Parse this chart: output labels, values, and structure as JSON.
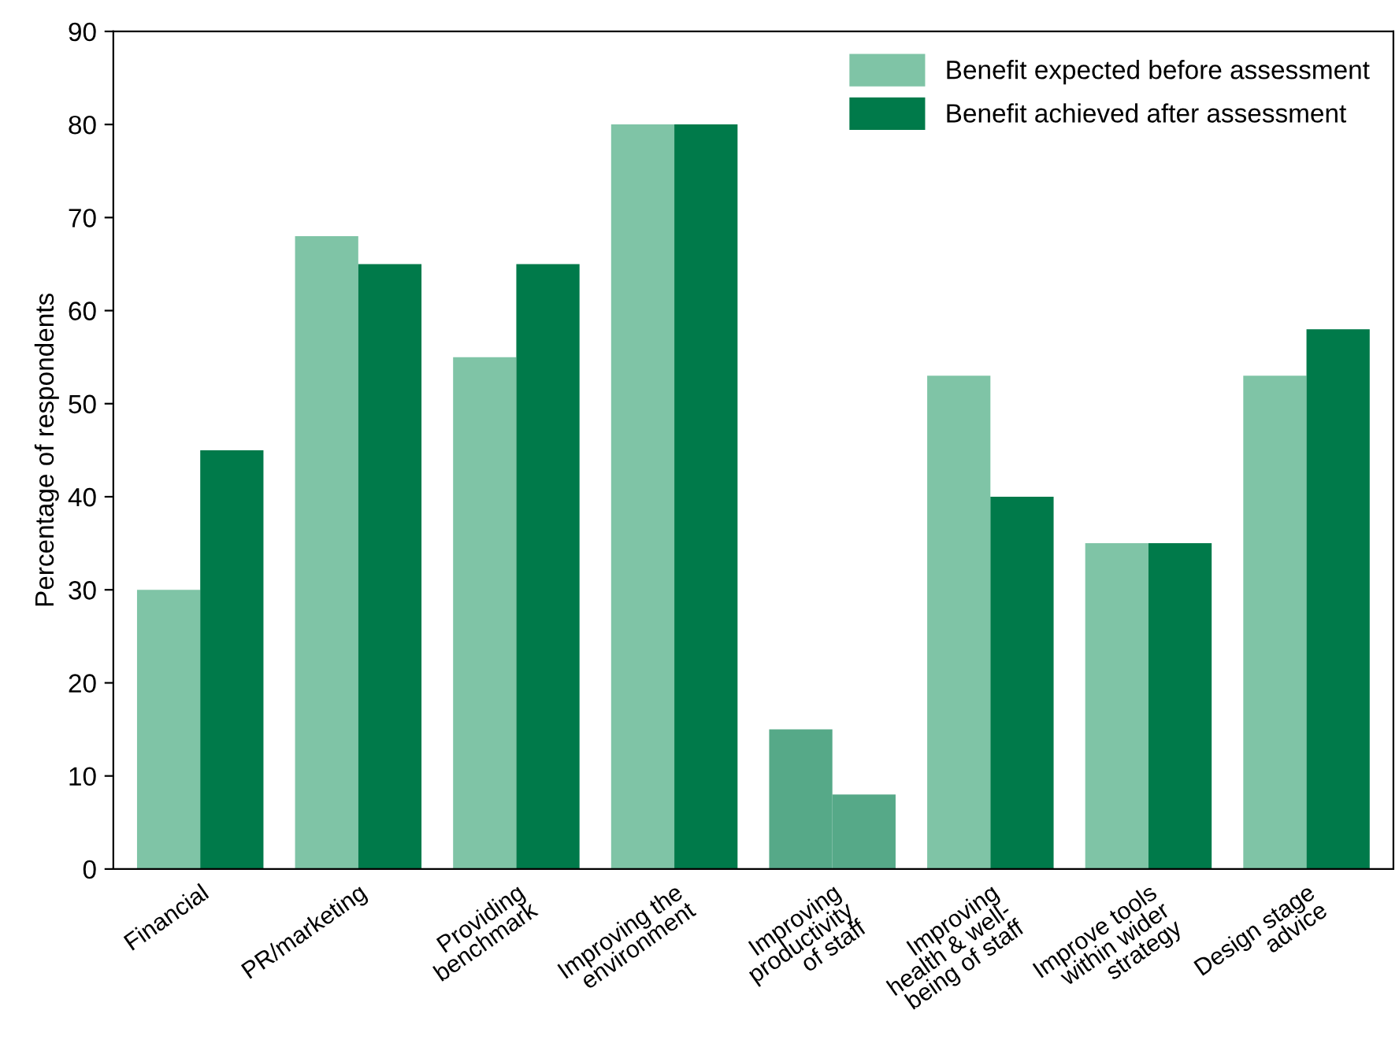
{
  "chart_data": {
    "type": "bar",
    "ylabel": "Percentage of respondents",
    "categories": [
      "Financial",
      "PR/marketing",
      "Providing\nbenchmark",
      "Improving the\nenvironment",
      "Improving\nproductivity\nof staff",
      "Improving\nhealth & well-\nbeing of staff",
      "Improve tools\nwithin wider\nstrategy",
      "Design stage\nadvice"
    ],
    "series": [
      {
        "name": "Benefit expected before assessment",
        "color": "#7fc4a6",
        "colors": [
          "#7fc4a6",
          "#7fc4a6",
          "#7fc4a6",
          "#7fc4a6",
          "#56a988",
          "#7fc4a6",
          "#7fc4a6",
          "#7fc4a6"
        ],
        "values": [
          30,
          68,
          55,
          80,
          15,
          53,
          35,
          53
        ]
      },
      {
        "name": "Benefit achieved after assessment",
        "color": "#007a4a",
        "colors": [
          "#007a4a",
          "#007a4a",
          "#007a4a",
          "#007a4a",
          "#56a988",
          "#007a4a",
          "#007a4a",
          "#007a4a"
        ],
        "values": [
          45,
          65,
          65,
          80,
          8,
          40,
          35,
          58
        ]
      }
    ],
    "ylim": [
      0,
      90
    ],
    "yticks": [
      0,
      10,
      20,
      30,
      40,
      50,
      60,
      70,
      80,
      90
    ],
    "grid": false,
    "legend": "top right"
  }
}
